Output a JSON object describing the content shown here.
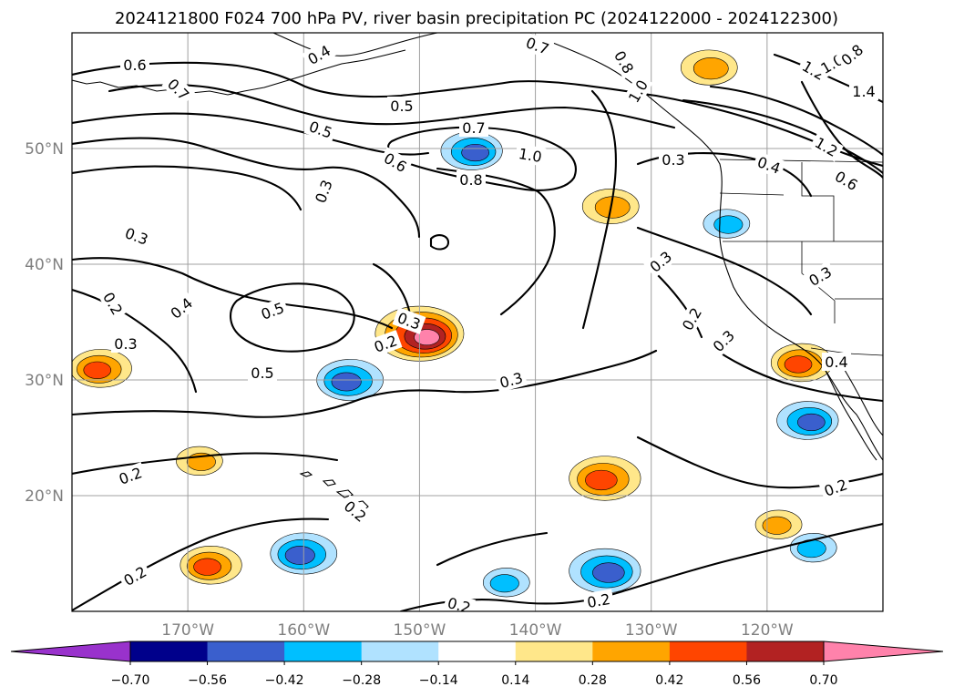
{
  "figure": {
    "title": "2024121800 F024 700 hPa PV, river basin precipitation PC (2024122000 - 2024122300)"
  },
  "chart_data": {
    "type": "map",
    "map_extent": {
      "lon_min": -180,
      "lon_max": -110,
      "lat_min": 10,
      "lat_max": 60
    },
    "longitude_ticks": [
      {
        "lon": -170,
        "label": "170°W"
      },
      {
        "lon": -160,
        "label": "160°W"
      },
      {
        "lon": -150,
        "label": "150°W"
      },
      {
        "lon": -140,
        "label": "140°W"
      },
      {
        "lon": -130,
        "label": "130°W"
      },
      {
        "lon": -120,
        "label": "120°W"
      }
    ],
    "latitude_ticks": [
      {
        "lat": 20,
        "label": "20°N"
      },
      {
        "lat": 30,
        "label": "30°N"
      },
      {
        "lat": 40,
        "label": "40°N"
      },
      {
        "lat": 50,
        "label": "50°N"
      }
    ],
    "grid": true,
    "colorbar": {
      "extend": "both",
      "boundaries": [
        -0.7,
        -0.56,
        -0.42,
        -0.28,
        -0.14,
        0.14,
        0.28,
        0.42,
        0.56,
        0.7
      ],
      "tick_labels": [
        "−0.70",
        "−0.56",
        "−0.42",
        "−0.28",
        "−0.14",
        "0.14",
        "0.28",
        "0.42",
        "0.56",
        "0.70"
      ],
      "colors": [
        "#9932cc",
        "#00008b",
        "#3a5fcd",
        "#00bfff",
        "#b0e2ff",
        "#ffffff",
        "#ffe78a",
        "#ffa500",
        "#ff4500",
        "#b22222",
        "#ff82ab"
      ]
    },
    "shaded_field_blobs": [
      {
        "lon": -177.5,
        "lat": 31,
        "value": 0.45
      },
      {
        "lon": -150,
        "lat": 34,
        "value": 0.72
      },
      {
        "lon": -156,
        "lat": 30,
        "value": -0.5
      },
      {
        "lon": -145.5,
        "lat": 49.8,
        "value": -0.45
      },
      {
        "lon": -160,
        "lat": 15,
        "value": -0.5
      },
      {
        "lon": -134,
        "lat": 13.5,
        "value": -0.55
      },
      {
        "lon": -134,
        "lat": 21.5,
        "value": 0.55
      },
      {
        "lon": -125,
        "lat": 57,
        "value": 0.4
      },
      {
        "lon": -117,
        "lat": 31.5,
        "value": 0.45
      },
      {
        "lon": -116.5,
        "lat": 26.5,
        "value": -0.45
      },
      {
        "lon": -119,
        "lat": 17.5,
        "value": 0.3
      },
      {
        "lon": -169,
        "lat": 23,
        "value": 0.3
      },
      {
        "lon": -168,
        "lat": 14,
        "value": 0.45
      },
      {
        "lon": -133.5,
        "lat": 45,
        "value": 0.4
      },
      {
        "lon": -142.5,
        "lat": 12.5,
        "value": -0.3
      },
      {
        "lon": -123.5,
        "lat": 43.5,
        "value": -0.3
      },
      {
        "lon": -116,
        "lat": 15.5,
        "value": -0.3
      }
    ],
    "contour_labels": [
      "0.6",
      "0.7",
      "0.4",
      "0.5",
      "0.7",
      "0.5",
      "1.0",
      "0.6",
      "0.8",
      "0.3",
      "0.7",
      "0.8",
      "1.0",
      "1.2",
      "1.0",
      "0.8",
      "1.4",
      "1.2",
      "0.3",
      "0.4",
      "0.6",
      "0.3",
      "0.3",
      "0.3",
      "0.2",
      "0.4",
      "0.5",
      "0.3",
      "0.2",
      "0.2",
      "0.3",
      "0.3",
      "0.4",
      "0.5",
      "0.3",
      "0.2",
      "0.2",
      "0.2",
      "0.2",
      "0.2",
      "0.2"
    ]
  }
}
